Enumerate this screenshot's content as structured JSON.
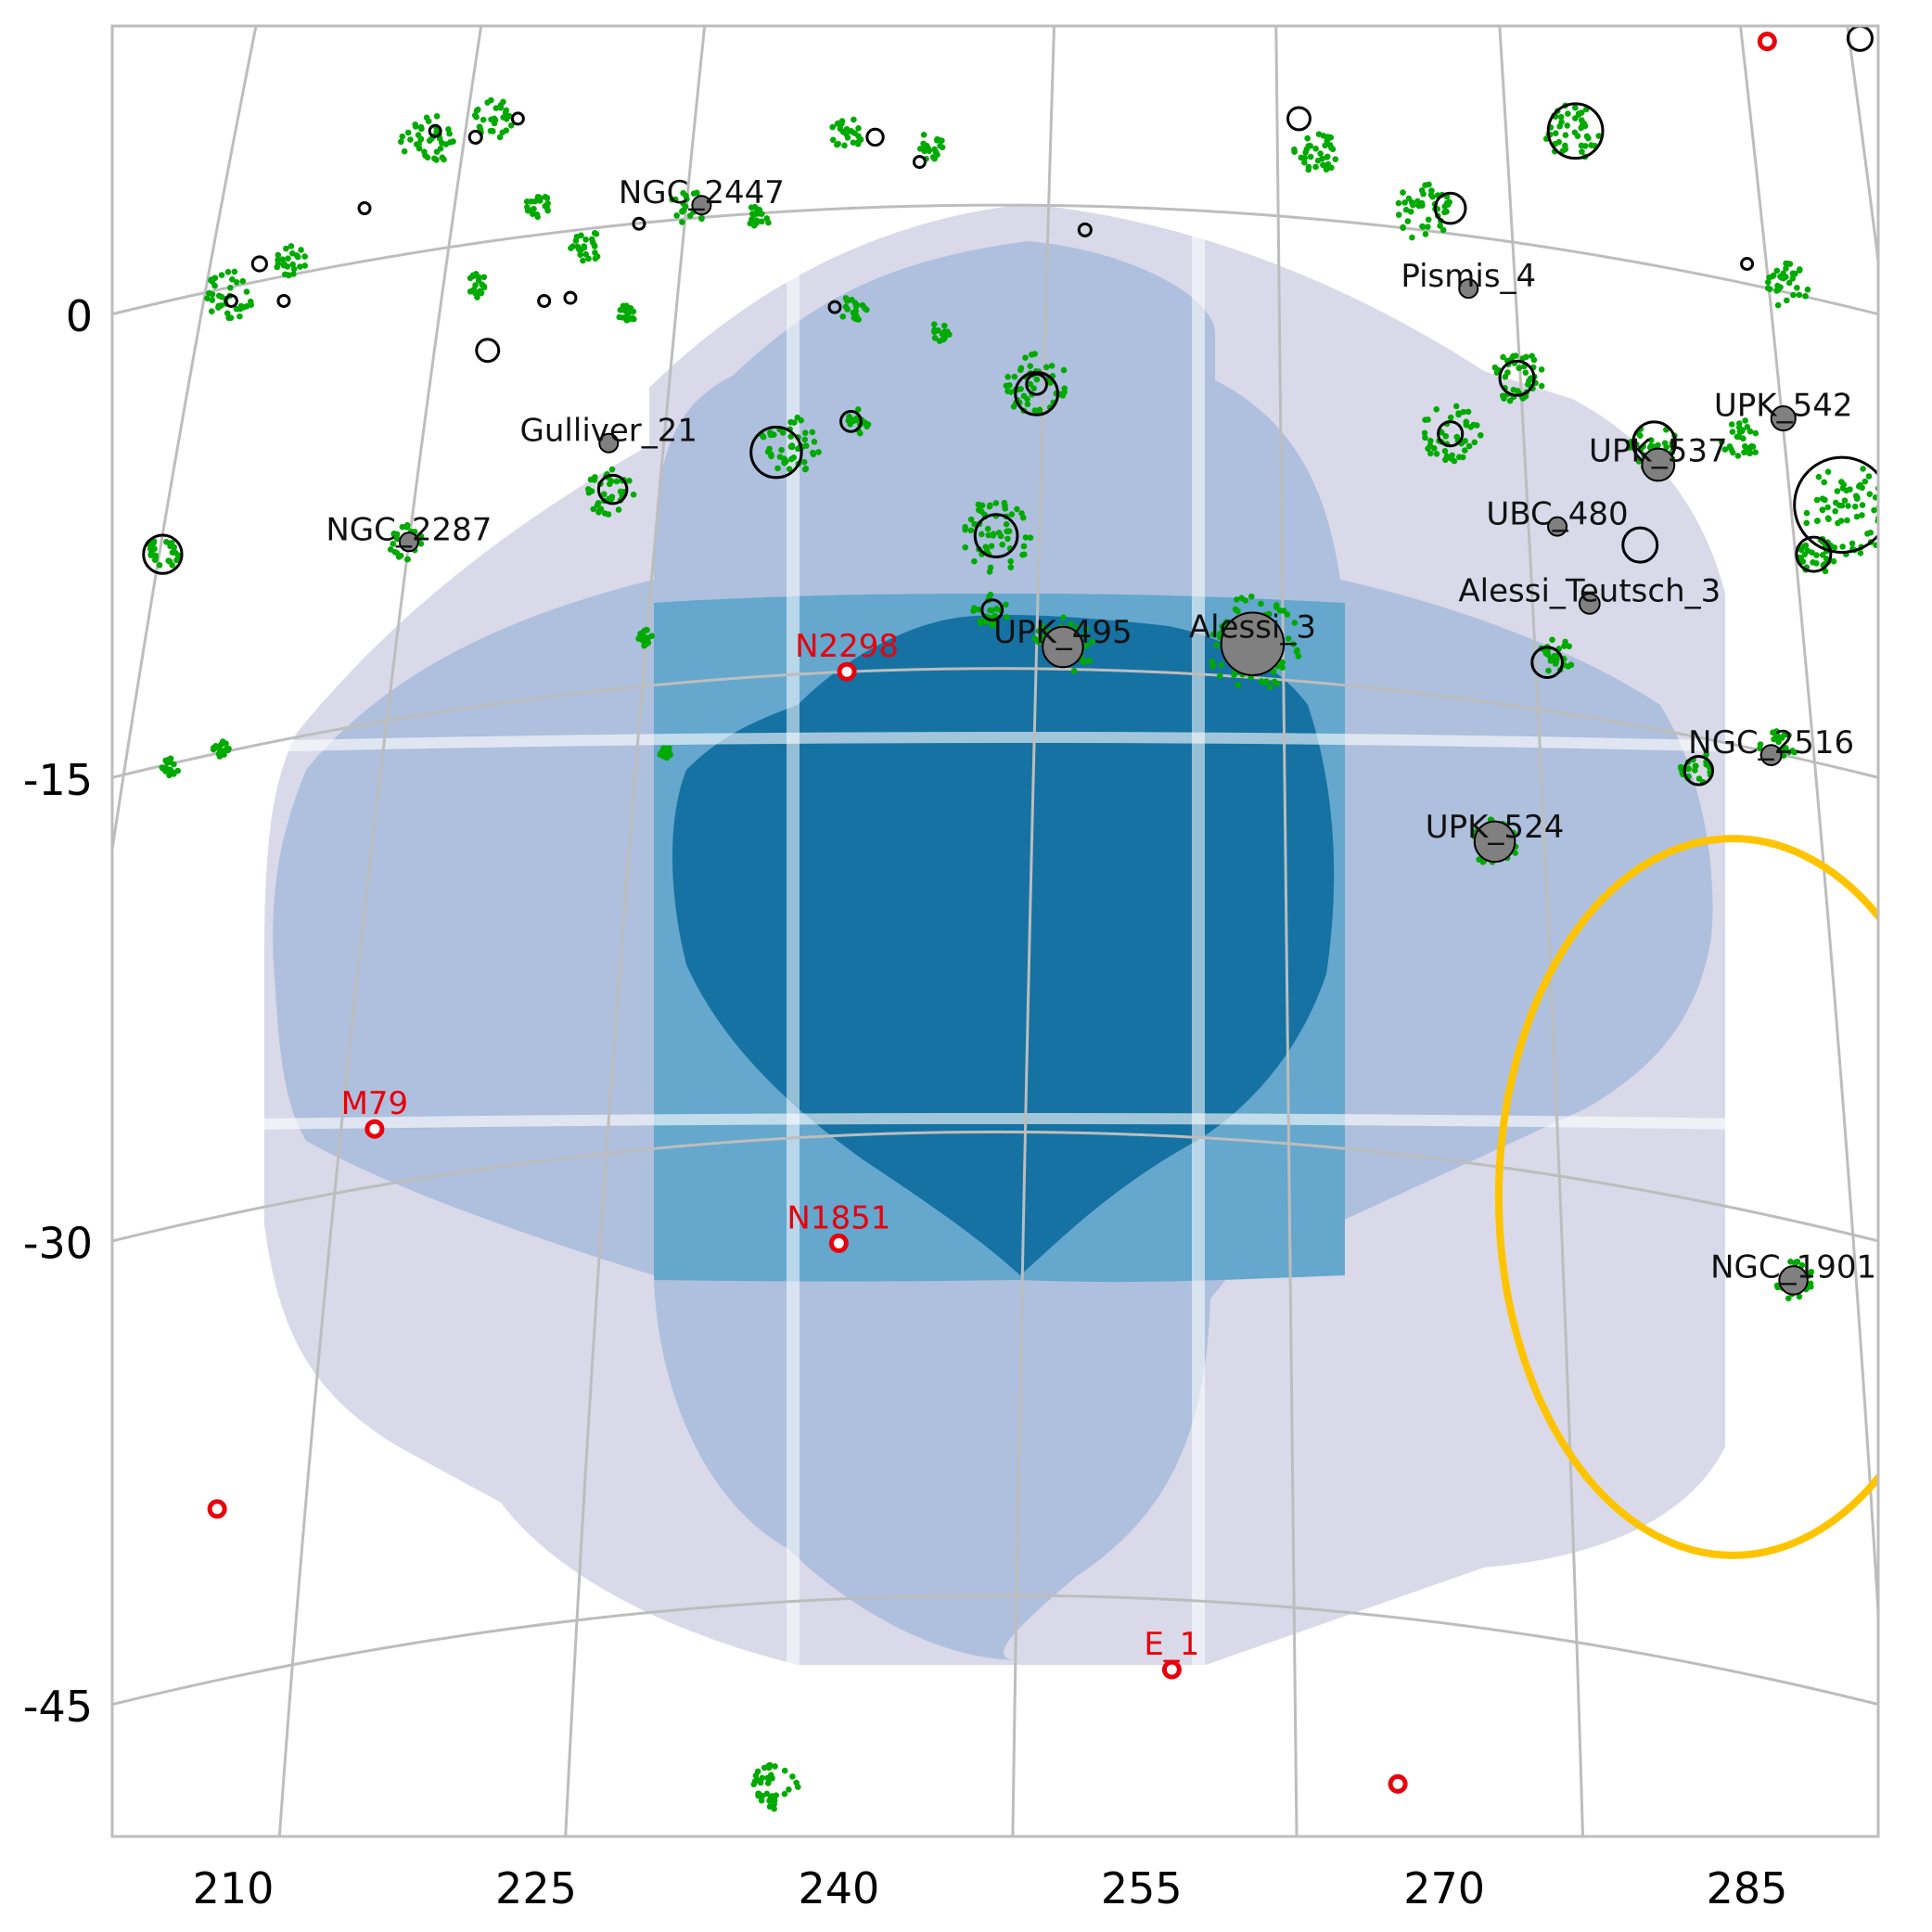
{
  "chart_data": {
    "type": "scatter",
    "title": "",
    "xlabel": "",
    "ylabel": "",
    "xlim": [
      204,
      291.5
    ],
    "ylim": [
      -49.2,
      9.4
    ],
    "x_ticks": [
      210,
      225,
      240,
      255,
      270,
      285
    ],
    "x_tick_labels": [
      "210",
      "225",
      "240",
      "255",
      "270",
      "285"
    ],
    "y_ticks": [
      0,
      -15,
      -30,
      -45
    ],
    "y_tick_labels": [
      "0",
      "-15",
      "-30",
      "-45"
    ],
    "grid": true,
    "legend": "none",
    "colors": {
      "frame": "#bdbdbd",
      "grid": "#bdbdbd",
      "coverage_1": "#d9d9ea",
      "coverage_2": "#aec0dd",
      "coverage_3": "#65a7cd",
      "coverage_4": "#1572a3",
      "members": "#00aa00",
      "cluster_fill": "#808080",
      "globular": "#e8000b",
      "lmc_ring": "#ffc400"
    },
    "named_clusters": [
      {
        "name": "NGC_2447",
        "x": 233.2,
        "y": 3.6,
        "r": 0.2
      },
      {
        "name": "Pismis_4",
        "x": 271.2,
        "y": 0.9,
        "r": 0.3
      },
      {
        "name": "Gulliver_21",
        "x": 228.6,
        "y": -4.1,
        "r": 0.4
      },
      {
        "name": "UPK_542",
        "x": 286.8,
        "y": -3.3,
        "r": 0.6
      },
      {
        "name": "UPK_537",
        "x": 280.6,
        "y": -4.8,
        "r": 0.8
      },
      {
        "name": "NGC_2287",
        "x": 218.7,
        "y": -7.3,
        "r": 0.3
      },
      {
        "name": "UBC_480",
        "x": 275.6,
        "y": -6.8,
        "r": 0.2
      },
      {
        "name": "Alessi_Teutsch_3",
        "x": 277.2,
        "y": -9.3,
        "r": 0.5
      },
      {
        "name": "UPK_495",
        "x": 251.1,
        "y": -10.7,
        "r": 1.0
      },
      {
        "name": "Alessi_3",
        "x": 260.5,
        "y": -10.6,
        "r": 1.55
      },
      {
        "name": "NGC_2516",
        "x": 286.2,
        "y": -14.2,
        "r": 0.5
      },
      {
        "name": "UPK_524",
        "x": 272.5,
        "y": -17.0,
        "r": 1.0
      },
      {
        "name": "NGC_1901",
        "x": 287.3,
        "y": -31.2,
        "r": 0.7
      }
    ],
    "globular_clusters": [
      {
        "name": "N2298",
        "x": 240.4,
        "y": -11.5
      },
      {
        "name": "M79",
        "x": 217.0,
        "y": -26.3
      },
      {
        "name": "N1851",
        "x": 240.0,
        "y": -30.0
      },
      {
        "name": "E_1",
        "x": 256.5,
        "y": -43.8
      },
      {
        "name": "",
        "x": 209.2,
        "y": -38.6
      },
      {
        "name": "",
        "x": 267.7,
        "y": -47.5
      },
      {
        "name": "",
        "x": 286.0,
        "y": 8.9
      }
    ],
    "lmc_ring": {
      "center_x": 284.3,
      "center_y": -28.5,
      "radius": 11.6
    },
    "member_groups": [
      {
        "x": 209.8,
        "y": 0.7,
        "r": 1.2
      },
      {
        "x": 212.9,
        "y": 1.8,
        "r": 0.8
      },
      {
        "x": 219.6,
        "y": 5.7,
        "r": 1.3
      },
      {
        "x": 222.9,
        "y": 6.4,
        "r": 1.0
      },
      {
        "x": 225.0,
        "y": 3.6,
        "r": 0.7
      },
      {
        "x": 222.1,
        "y": 1.0,
        "r": 0.6
      },
      {
        "x": 227.5,
        "y": 2.3,
        "r": 0.8
      },
      {
        "x": 229.5,
        "y": 0.1,
        "r": 0.5
      },
      {
        "x": 232.5,
        "y": 3.5,
        "r": 0.9
      },
      {
        "x": 236.0,
        "y": 3.2,
        "r": 0.6
      },
      {
        "x": 240.4,
        "y": 5.9,
        "r": 0.8
      },
      {
        "x": 244.5,
        "y": 5.5,
        "r": 0.7
      },
      {
        "x": 240.7,
        "y": 0.3,
        "r": 0.7
      },
      {
        "x": 245.0,
        "y": -0.5,
        "r": 0.5
      },
      {
        "x": 249.8,
        "y": -2.2,
        "r": 1.6
      },
      {
        "x": 247.7,
        "y": -7.1,
        "r": 1.8
      },
      {
        "x": 247.5,
        "y": -9.5,
        "r": 0.9
      },
      {
        "x": 228.7,
        "y": -5.7,
        "r": 1.2
      },
      {
        "x": 237.6,
        "y": -4.1,
        "r": 1.5
      },
      {
        "x": 241.0,
        "y": -3.4,
        "r": 0.6
      },
      {
        "x": 218.6,
        "y": -7.3,
        "r": 0.9
      },
      {
        "x": 206.6,
        "y": -7.6,
        "r": 0.9
      },
      {
        "x": 263.6,
        "y": 5.3,
        "r": 1.1
      },
      {
        "x": 268.9,
        "y": 3.4,
        "r": 1.5
      },
      {
        "x": 273.7,
        "y": -2.0,
        "r": 1.4
      },
      {
        "x": 270.3,
        "y": -3.8,
        "r": 1.5
      },
      {
        "x": 276.4,
        "y": 6.0,
        "r": 1.4
      },
      {
        "x": 280.4,
        "y": -4.2,
        "r": 1.2
      },
      {
        "x": 284.7,
        "y": -4.0,
        "r": 1.0
      },
      {
        "x": 287.0,
        "y": 1.0,
        "r": 1.1
      },
      {
        "x": 289.9,
        "y": -6.3,
        "r": 2.3
      },
      {
        "x": 288.5,
        "y": -7.7,
        "r": 1.0
      },
      {
        "x": 286.5,
        "y": -14.0,
        "r": 0.9
      },
      {
        "x": 282.5,
        "y": -14.6,
        "r": 0.8
      },
      {
        "x": 275.5,
        "y": -11.0,
        "r": 0.9
      },
      {
        "x": 272.5,
        "y": -17.0,
        "r": 1.2
      },
      {
        "x": 287.3,
        "y": -31.2,
        "r": 1.0
      },
      {
        "x": 260.5,
        "y": -10.6,
        "r": 2.4
      },
      {
        "x": 251.1,
        "y": -10.7,
        "r": 1.5
      },
      {
        "x": 206.8,
        "y": -14.6,
        "r": 0.5
      },
      {
        "x": 209.4,
        "y": -14.0,
        "r": 0.4
      },
      {
        "x": 231.4,
        "y": -14.1,
        "r": 0.3
      },
      {
        "x": 230.4,
        "y": -10.4,
        "r": 0.4
      },
      {
        "x": 236.8,
        "y": -47.6,
        "r": 1.2
      }
    ],
    "black_circles": [
      {
        "x": 209.9,
        "y": 0.5,
        "r": 0.25
      },
      {
        "x": 211.3,
        "y": 1.7,
        "r": 0.35
      },
      {
        "x": 216.5,
        "y": 3.5,
        "r": 0.2
      },
      {
        "x": 220.0,
        "y": 6.0,
        "r": 0.2
      },
      {
        "x": 222.0,
        "y": 5.8,
        "r": 0.3
      },
      {
        "x": 224.1,
        "y": 6.4,
        "r": 0.2
      },
      {
        "x": 222.6,
        "y": -1.1,
        "r": 0.55
      },
      {
        "x": 225.4,
        "y": 0.5,
        "r": 0.2
      },
      {
        "x": 230.1,
        "y": 3.0,
        "r": 0.2
      },
      {
        "x": 228.8,
        "y": -5.6,
        "r": 0.7
      },
      {
        "x": 236.9,
        "y": -4.4,
        "r": 1.25
      },
      {
        "x": 240.6,
        "y": -3.4,
        "r": 0.5
      },
      {
        "x": 241.8,
        "y": 5.8,
        "r": 0.4
      },
      {
        "x": 239.8,
        "y": 0.3,
        "r": 0.2
      },
      {
        "x": 249.8,
        "y": -2.5,
        "r": 1.05
      },
      {
        "x": 249.8,
        "y": -2.2,
        "r": 0.5
      },
      {
        "x": 247.8,
        "y": -7.1,
        "r": 1.05
      },
      {
        "x": 247.6,
        "y": -9.5,
        "r": 0.5
      },
      {
        "x": 252.2,
        "y": 2.8,
        "r": 0.3
      },
      {
        "x": 262.8,
        "y": 6.4,
        "r": 0.55
      },
      {
        "x": 270.3,
        "y": 3.5,
        "r": 0.75
      },
      {
        "x": 273.6,
        "y": -2.0,
        "r": 0.85
      },
      {
        "x": 270.3,
        "y": -3.8,
        "r": 0.6
      },
      {
        "x": 276.5,
        "y": 6.0,
        "r": 1.35
      },
      {
        "x": 280.4,
        "y": -4.1,
        "r": 1.05
      },
      {
        "x": 279.7,
        "y": -7.4,
        "r": 0.85
      },
      {
        "x": 289.7,
        "y": -6.1,
        "r": 2.35
      },
      {
        "x": 288.3,
        "y": -7.7,
        "r": 0.85
      },
      {
        "x": 275.1,
        "y": -11.2,
        "r": 0.75
      },
      {
        "x": 282.6,
        "y": -14.7,
        "r": 0.7
      },
      {
        "x": 206.5,
        "y": -7.7,
        "r": 0.95
      },
      {
        "x": 290.6,
        "y": 9.0,
        "r": 0.6
      },
      {
        "x": 212.5,
        "y": 0.5,
        "r": 0.2
      },
      {
        "x": 226.7,
        "y": 0.6,
        "r": 0.2
      },
      {
        "x": 244.0,
        "y": 5.0,
        "r": 0.2
      },
      {
        "x": 285.0,
        "y": 1.7,
        "r": 0.2
      }
    ]
  }
}
